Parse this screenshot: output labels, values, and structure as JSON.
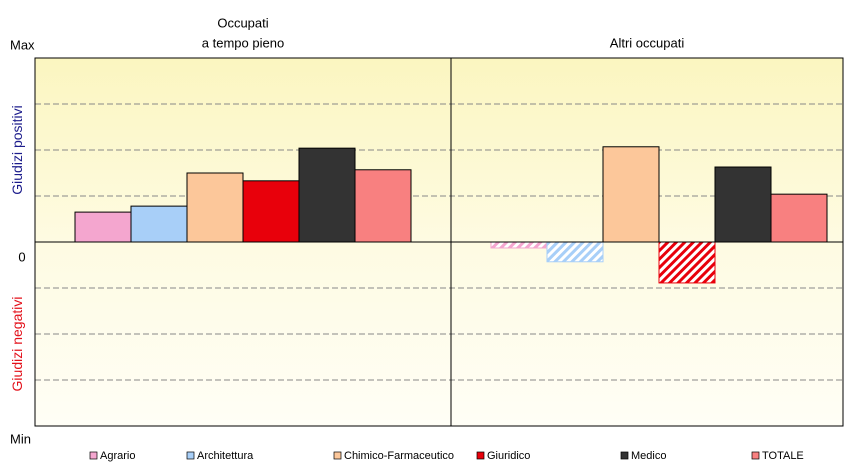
{
  "chart_data": {
    "type": "bar",
    "panel_titles": [
      [
        "Occupati",
        "a tempo pieno"
      ],
      [
        "Altri occupati"
      ]
    ],
    "series": [
      {
        "name": "Agrario",
        "color": "#f4a6cf",
        "values": [
          0.65,
          -0.13
        ]
      },
      {
        "name": "Architettura",
        "color": "#a8cff8",
        "values": [
          0.78,
          -0.43
        ]
      },
      {
        "name": "Chimico-Farmaceutico",
        "color": "#fcc79a",
        "values": [
          1.5,
          2.07
        ]
      },
      {
        "name": "Giuridico",
        "color": "#e8000b",
        "values": [
          1.33,
          -0.89
        ]
      },
      {
        "name": "Medico",
        "color": "#333333",
        "values": [
          2.04,
          1.63
        ]
      },
      {
        "name": "TOTALE",
        "color": "#f88080",
        "values": [
          1.57,
          1.04
        ]
      }
    ],
    "ylim": [
      -4,
      4
    ],
    "yticks": [
      {
        "value": -4,
        "label": "Min"
      },
      0,
      {
        "value": 4,
        "label": "Max"
      }
    ],
    "grid_values": [
      -3,
      -2,
      -1,
      1,
      2,
      3
    ],
    "grid": true,
    "hatch_negative_in_panels": [
      1
    ],
    "positive_label": "Giudizi positivi",
    "negative_label": "Giudizi negativi",
    "legend": "bottom"
  }
}
